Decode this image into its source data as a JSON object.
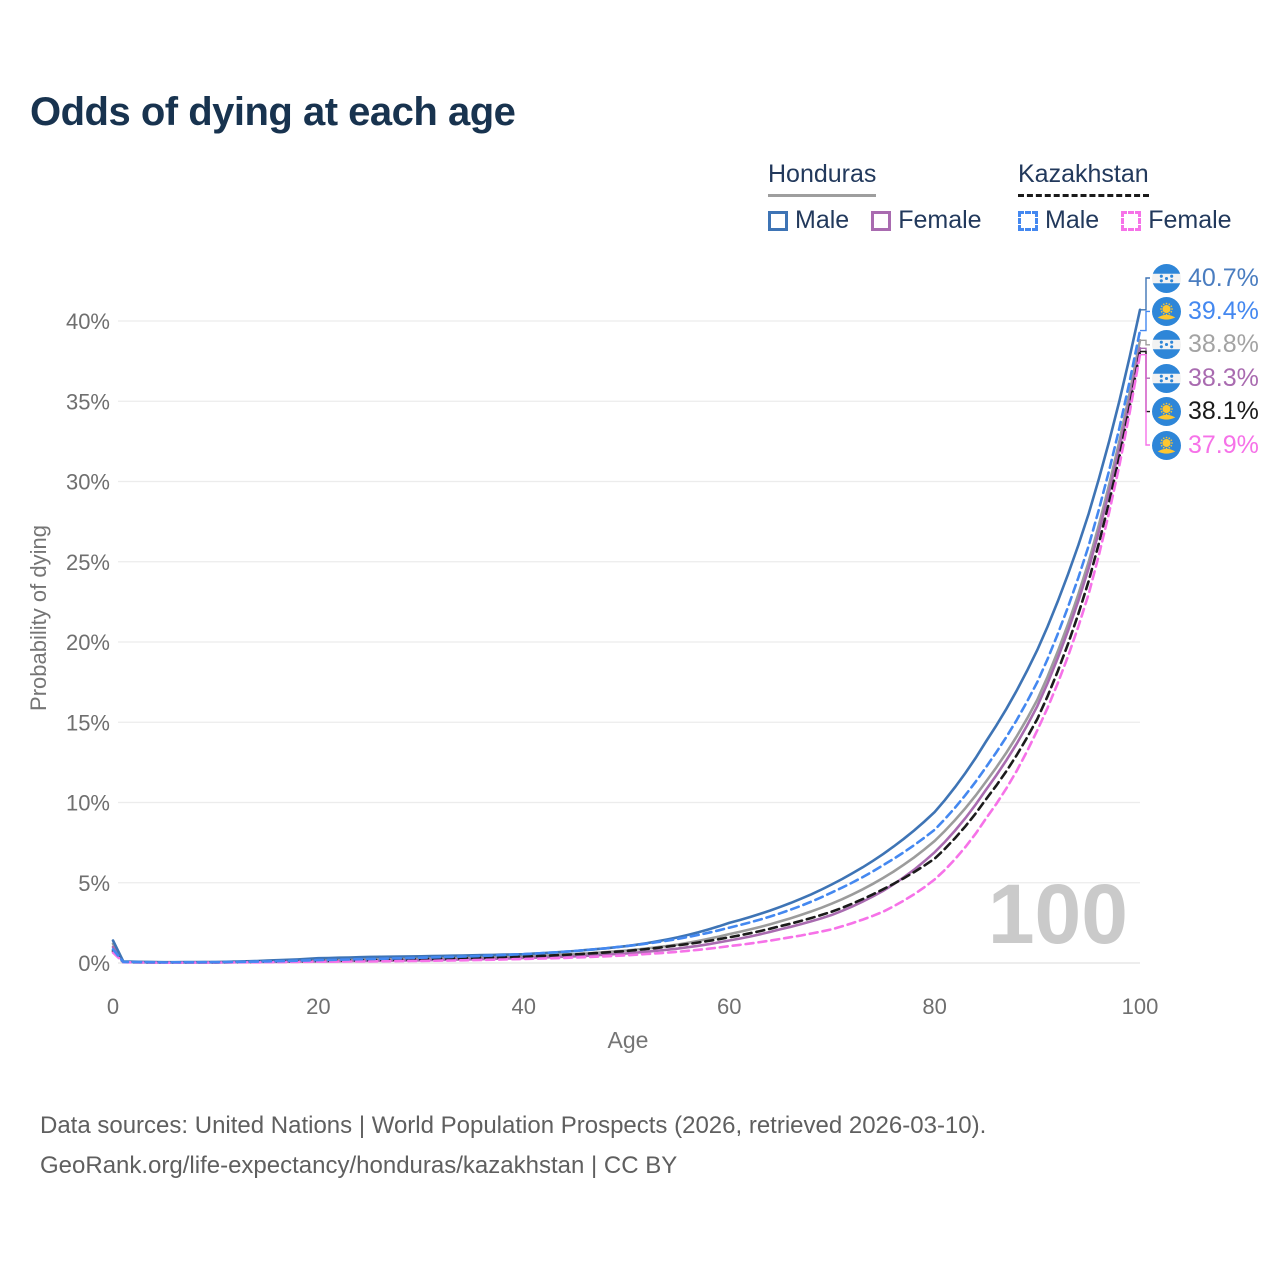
{
  "header": {
    "title": "Odds of dying at each age"
  },
  "legend": {
    "groups": [
      {
        "id": "honduras",
        "label": "Honduras",
        "underline_style": "solid",
        "underline_color": "#9e9e9e",
        "items": [
          {
            "label": "Male",
            "color": "#3e74b5",
            "dashed": false
          },
          {
            "label": "Female",
            "color": "#a96bb0",
            "dashed": false
          }
        ]
      },
      {
        "id": "kazakhstan",
        "label": "Kazakhstan",
        "underline_style": "dashed",
        "underline_color": "#1a1a1a",
        "items": [
          {
            "label": "Male",
            "color": "#4488f0",
            "dashed": true
          },
          {
            "label": "Female",
            "color": "#f672e8",
            "dashed": true
          }
        ]
      }
    ]
  },
  "chart_data": {
    "type": "line",
    "title": "Odds of dying at each age",
    "xlabel": "Age",
    "ylabel": "Probability of dying",
    "xlim": [
      0,
      100
    ],
    "ylim": [
      0,
      40
    ],
    "x_ticks": [
      0,
      20,
      40,
      60,
      80,
      100
    ],
    "y_ticks": [
      "0%",
      "5%",
      "10%",
      "15%",
      "20%",
      "25%",
      "30%",
      "35%",
      "40%"
    ],
    "grid": "horizontal",
    "legend_position": "top-right",
    "watermark": "100",
    "x": [
      0,
      1,
      5,
      10,
      15,
      20,
      25,
      30,
      35,
      40,
      45,
      50,
      55,
      60,
      65,
      70,
      75,
      80,
      85,
      90,
      95,
      100
    ],
    "series": [
      {
        "name": "Honduras Both sexes",
        "country": "Honduras",
        "sex": "Both",
        "style": "solid",
        "color": "#9c9c9c",
        "values": [
          1.2,
          0.08,
          0.04,
          0.05,
          0.1,
          0.2,
          0.26,
          0.3,
          0.35,
          0.42,
          0.55,
          0.78,
          1.15,
          1.8,
          2.6,
          3.7,
          5.3,
          7.6,
          11.3,
          16.4,
          25.0,
          38.8
        ]
      },
      {
        "name": "Honduras Female",
        "country": "Honduras",
        "sex": "Female",
        "style": "solid",
        "color": "#a96bb0",
        "values": [
          1.0,
          0.07,
          0.03,
          0.04,
          0.07,
          0.1,
          0.13,
          0.17,
          0.23,
          0.31,
          0.42,
          0.6,
          0.9,
          1.4,
          2.1,
          3.0,
          4.5,
          6.9,
          10.8,
          16.0,
          24.6,
          38.3
        ]
      },
      {
        "name": "Honduras Male",
        "country": "Honduras",
        "sex": "Male",
        "style": "solid",
        "color": "#3e74b5",
        "values": [
          1.4,
          0.1,
          0.05,
          0.06,
          0.15,
          0.3,
          0.38,
          0.42,
          0.48,
          0.55,
          0.75,
          1.05,
          1.6,
          2.5,
          3.5,
          4.9,
          6.8,
          9.4,
          13.8,
          19.5,
          28.0,
          40.7
        ]
      },
      {
        "name": "Kazakhstan Both sexes",
        "country": "Kazakhstan",
        "sex": "Both",
        "style": "dashed",
        "color": "#1b1b1b",
        "values": [
          0.75,
          0.05,
          0.03,
          0.04,
          0.08,
          0.13,
          0.18,
          0.24,
          0.31,
          0.4,
          0.54,
          0.75,
          1.1,
          1.6,
          2.3,
          3.2,
          4.6,
          6.5,
          10.2,
          15.2,
          23.8,
          38.1
        ]
      },
      {
        "name": "Kazakhstan Female",
        "country": "Kazakhstan",
        "sex": "Female",
        "style": "dashed",
        "color": "#f672e8",
        "values": [
          0.65,
          0.05,
          0.02,
          0.03,
          0.05,
          0.08,
          0.1,
          0.13,
          0.18,
          0.25,
          0.34,
          0.48,
          0.7,
          1.05,
          1.5,
          2.1,
          3.2,
          5.2,
          9.0,
          14.5,
          23.0,
          37.9
        ]
      },
      {
        "name": "Kazakhstan Male",
        "country": "Kazakhstan",
        "sex": "Male",
        "style": "dashed",
        "color": "#4488f0",
        "values": [
          0.85,
          0.06,
          0.04,
          0.05,
          0.1,
          0.18,
          0.25,
          0.33,
          0.42,
          0.55,
          0.75,
          1.05,
          1.5,
          2.2,
          3.1,
          4.4,
          6.1,
          8.3,
          12.2,
          17.5,
          26.0,
          39.4
        ]
      }
    ],
    "end_labels": [
      {
        "value": "40.7%",
        "series": "Honduras Male",
        "flag": "honduras",
        "color": "#4a7dc0"
      },
      {
        "value": "39.4%",
        "series": "Kazakhstan Male",
        "flag": "kazakhstan",
        "color": "#4488f0"
      },
      {
        "value": "38.8%",
        "series": "Honduras Both sexes",
        "flag": "honduras",
        "color": "#a3a3a3"
      },
      {
        "value": "38.3%",
        "series": "Honduras Female",
        "flag": "honduras",
        "color": "#a96bb0"
      },
      {
        "value": "38.1%",
        "series": "Kazakhstan Both sexes",
        "flag": "kazakhstan",
        "color": "#1b1b1b"
      },
      {
        "value": "37.9%",
        "series": "Kazakhstan Female",
        "flag": "kazakhstan",
        "color": "#f672e8"
      }
    ],
    "flag_colors": {
      "blue": "#2e86d8",
      "yellow": "#fdc62f",
      "white": "#f2f2f2"
    }
  },
  "footer": {
    "line1": "Data sources: United Nations | World Population Prospects (2026, retrieved 2026-03-10).",
    "line2": "GeoRank.org/life-expectancy/honduras/kazakhstan | CC BY"
  }
}
